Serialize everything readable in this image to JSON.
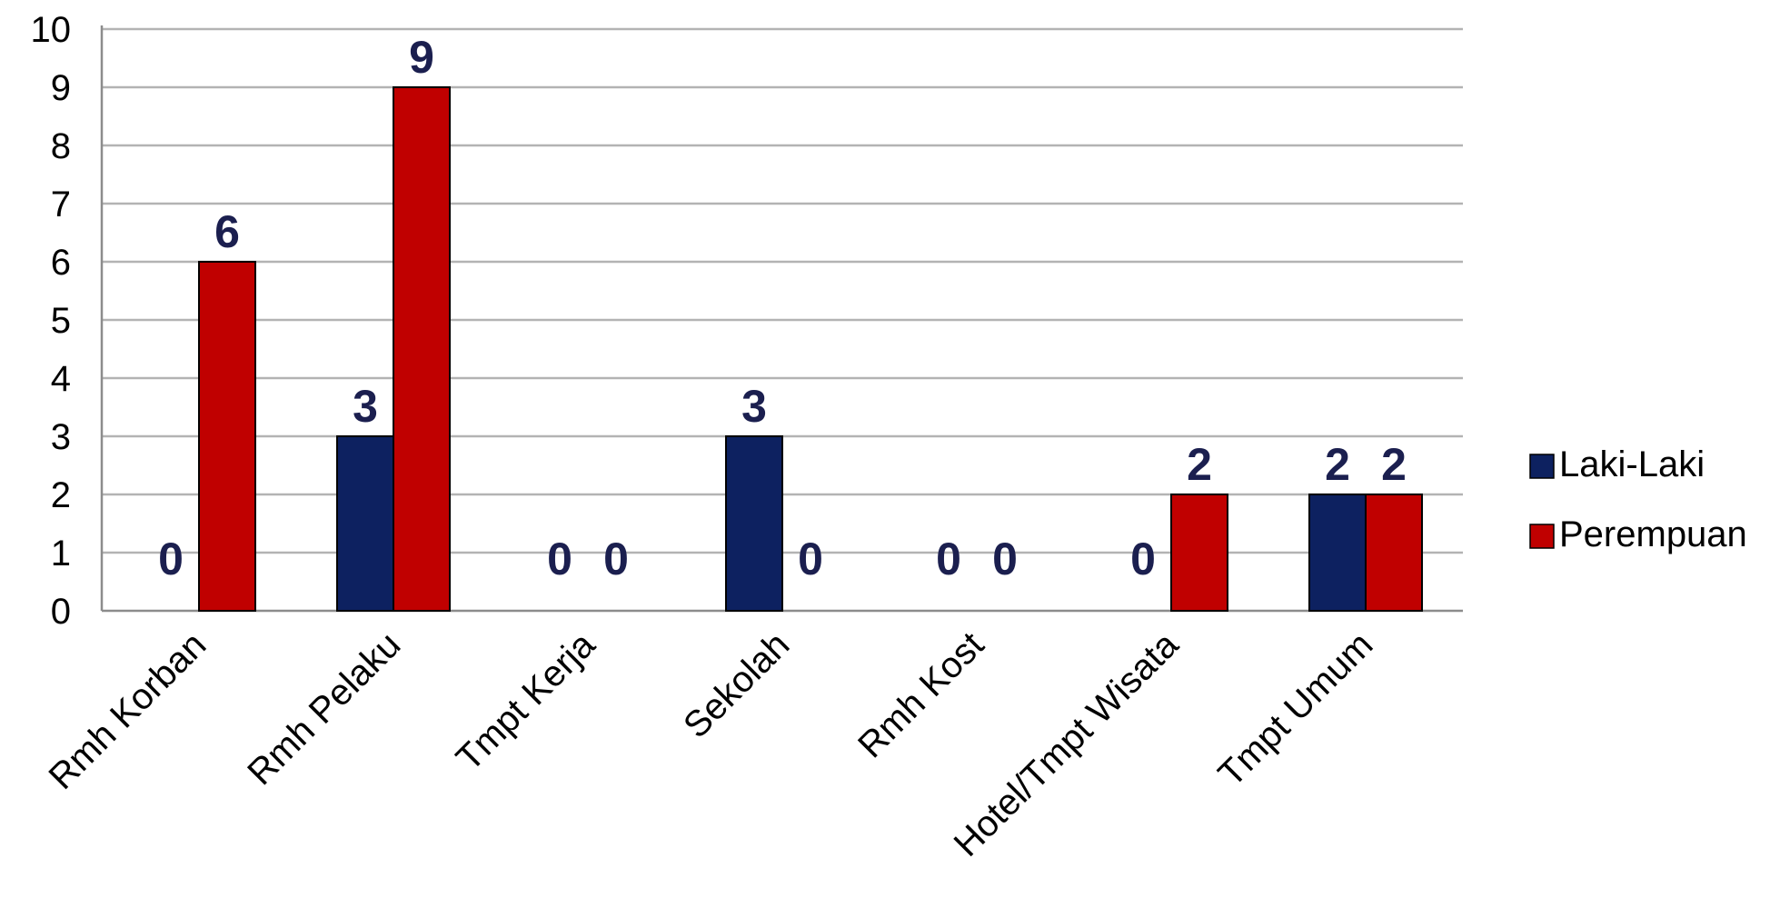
{
  "chart_data": {
    "type": "bar",
    "title": "",
    "xlabel": "",
    "ylabel": "",
    "ylim": [
      0,
      10
    ],
    "yticks": [
      0,
      1,
      2,
      3,
      4,
      5,
      6,
      7,
      8,
      9,
      10
    ],
    "grid": true,
    "legend_position": "right",
    "categories": [
      "Rmh Korban",
      "Rmh Pelaku",
      "Tmpt Kerja",
      "Sekolah",
      "Rmh Kost",
      "Hotel/Tmpt Wisata",
      "Tmpt Umum"
    ],
    "series": [
      {
        "name": "Laki-Laki",
        "color": "#0d2160",
        "values": [
          0,
          3,
          0,
          3,
          0,
          0,
          2
        ]
      },
      {
        "name": "Perempuan",
        "color": "#c00000",
        "values": [
          6,
          9,
          0,
          0,
          0,
          2,
          2
        ]
      }
    ],
    "data_label_color": "#1b1f4f",
    "grid_color": "#b3b3b3"
  }
}
